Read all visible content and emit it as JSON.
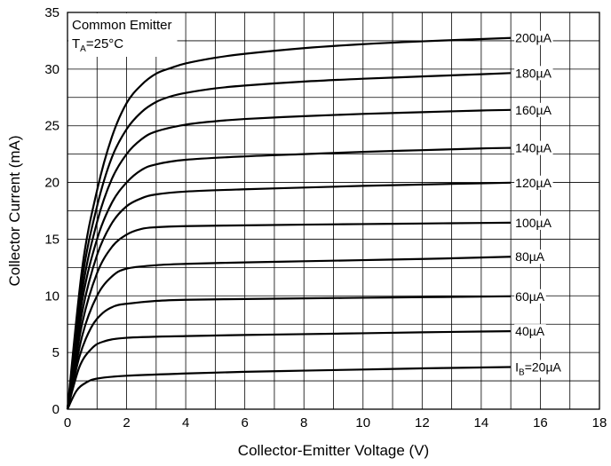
{
  "chart_data": {
    "type": "line",
    "xlabel": "Collector-Emitter Voltage (V)",
    "ylabel": "Collector Current (mA)",
    "xlim": [
      0,
      18
    ],
    "ylim": [
      0,
      35
    ],
    "xticks": [
      0,
      2,
      4,
      6,
      8,
      10,
      12,
      14,
      16,
      18
    ],
    "yticks": [
      0,
      5,
      10,
      15,
      20,
      25,
      30,
      35
    ],
    "x_minor_step": 1,
    "y_minor_step": 2.5,
    "grid": true,
    "annotation": {
      "line1": "Common Emitter",
      "temp_main": "T",
      "temp_sub": "A",
      "temp_value": "=25°C"
    },
    "series": [
      {
        "name": "IB=20µA",
        "label_main": "I",
        "label_sub": "B",
        "label_tail": "=20µA",
        "points": [
          [
            0,
            0
          ],
          [
            0.3,
            1.6
          ],
          [
            0.6,
            2.3
          ],
          [
            1,
            2.7
          ],
          [
            2,
            2.95
          ],
          [
            4,
            3.15
          ],
          [
            6,
            3.3
          ],
          [
            8,
            3.4
          ],
          [
            10,
            3.5
          ],
          [
            12,
            3.6
          ],
          [
            14,
            3.68
          ],
          [
            15,
            3.72
          ]
        ]
      },
      {
        "name": "40µA",
        "label_main": "40µA",
        "label_sub": "",
        "label_tail": "",
        "points": [
          [
            0,
            0
          ],
          [
            0.4,
            3.7
          ],
          [
            0.8,
            5.3
          ],
          [
            1.2,
            5.95
          ],
          [
            2,
            6.3
          ],
          [
            4,
            6.45
          ],
          [
            6,
            6.55
          ],
          [
            8,
            6.62
          ],
          [
            10,
            6.7
          ],
          [
            12,
            6.78
          ],
          [
            14,
            6.85
          ],
          [
            15,
            6.88
          ]
        ]
      },
      {
        "name": "60µA",
        "label_main": "60µA",
        "label_sub": "",
        "label_tail": "",
        "points": [
          [
            0,
            0
          ],
          [
            0.4,
            4.6
          ],
          [
            0.8,
            7.2
          ],
          [
            1.2,
            8.5
          ],
          [
            1.6,
            9.1
          ],
          [
            2,
            9.3
          ],
          [
            3,
            9.55
          ],
          [
            4,
            9.65
          ],
          [
            6,
            9.72
          ],
          [
            8,
            9.78
          ],
          [
            10,
            9.83
          ],
          [
            12,
            9.88
          ],
          [
            14,
            9.93
          ],
          [
            15,
            9.96
          ]
        ]
      },
      {
        "name": "80µA",
        "label_main": "80µA",
        "label_sub": "",
        "label_tail": "",
        "points": [
          [
            0,
            0
          ],
          [
            0.5,
            6.5
          ],
          [
            1,
            10.0
          ],
          [
            1.5,
            11.7
          ],
          [
            2,
            12.4
          ],
          [
            3,
            12.7
          ],
          [
            4,
            12.82
          ],
          [
            6,
            12.95
          ],
          [
            8,
            13.05
          ],
          [
            10,
            13.15
          ],
          [
            12,
            13.25
          ],
          [
            14,
            13.38
          ],
          [
            15,
            13.45
          ]
        ]
      },
      {
        "name": "100µA",
        "label_main": "100µA",
        "label_sub": "",
        "label_tail": "",
        "points": [
          [
            0,
            0
          ],
          [
            0.5,
            7.6
          ],
          [
            1,
            12.0
          ],
          [
            1.5,
            14.3
          ],
          [
            2,
            15.4
          ],
          [
            2.5,
            15.9
          ],
          [
            3,
            16.05
          ],
          [
            4,
            16.15
          ],
          [
            6,
            16.22
          ],
          [
            8,
            16.28
          ],
          [
            10,
            16.33
          ],
          [
            12,
            16.38
          ],
          [
            14,
            16.43
          ],
          [
            15,
            16.45
          ]
        ]
      },
      {
        "name": "120µA",
        "label_main": "120µA",
        "label_sub": "",
        "label_tail": "",
        "points": [
          [
            0,
            0
          ],
          [
            0.5,
            8.6
          ],
          [
            1,
            13.6
          ],
          [
            1.5,
            16.4
          ],
          [
            2,
            17.9
          ],
          [
            2.5,
            18.6
          ],
          [
            3,
            18.95
          ],
          [
            4,
            19.2
          ],
          [
            6,
            19.4
          ],
          [
            8,
            19.55
          ],
          [
            10,
            19.7
          ],
          [
            12,
            19.82
          ],
          [
            14,
            19.93
          ],
          [
            15,
            19.98
          ]
        ]
      },
      {
        "name": "140µA",
        "label_main": "140µA",
        "label_sub": "",
        "label_tail": "",
        "points": [
          [
            0,
            0
          ],
          [
            0.5,
            9.6
          ],
          [
            1,
            15.0
          ],
          [
            1.5,
            18.2
          ],
          [
            2,
            20.0
          ],
          [
            2.5,
            21.1
          ],
          [
            3,
            21.6
          ],
          [
            4,
            22.0
          ],
          [
            6,
            22.3
          ],
          [
            8,
            22.5
          ],
          [
            10,
            22.7
          ],
          [
            12,
            22.85
          ],
          [
            14,
            23.0
          ],
          [
            15,
            23.05
          ]
        ]
      },
      {
        "name": "160µA",
        "label_main": "160µA",
        "label_sub": "",
        "label_tail": "",
        "points": [
          [
            0,
            0
          ],
          [
            0.5,
            10.5
          ],
          [
            1,
            16.5
          ],
          [
            1.5,
            20.3
          ],
          [
            2,
            22.5
          ],
          [
            2.5,
            23.8
          ],
          [
            3,
            24.5
          ],
          [
            4,
            25.1
          ],
          [
            5,
            25.4
          ],
          [
            6,
            25.6
          ],
          [
            8,
            25.85
          ],
          [
            10,
            26.05
          ],
          [
            12,
            26.2
          ],
          [
            14,
            26.35
          ],
          [
            15,
            26.4
          ]
        ]
      },
      {
        "name": "180µA",
        "label_main": "180µA",
        "label_sub": "",
        "label_tail": "",
        "points": [
          [
            0,
            0
          ],
          [
            0.5,
            11.5
          ],
          [
            1,
            17.9
          ],
          [
            1.5,
            22.2
          ],
          [
            2,
            24.7
          ],
          [
            2.5,
            26.2
          ],
          [
            3,
            27.1
          ],
          [
            3.5,
            27.6
          ],
          [
            4,
            27.9
          ],
          [
            5,
            28.3
          ],
          [
            6,
            28.55
          ],
          [
            8,
            28.9
          ],
          [
            10,
            29.15
          ],
          [
            12,
            29.35
          ],
          [
            14,
            29.55
          ],
          [
            15,
            29.65
          ]
        ]
      },
      {
        "name": "200µA",
        "label_main": "200µA",
        "label_sub": "",
        "label_tail": "",
        "points": [
          [
            0,
            0
          ],
          [
            0.5,
            12.5
          ],
          [
            1,
            19.3
          ],
          [
            1.5,
            24.0
          ],
          [
            2,
            27.0
          ],
          [
            2.5,
            28.6
          ],
          [
            3,
            29.6
          ],
          [
            3.5,
            30.1
          ],
          [
            4,
            30.5
          ],
          [
            5,
            31.0
          ],
          [
            6,
            31.35
          ],
          [
            8,
            31.85
          ],
          [
            10,
            32.2
          ],
          [
            12,
            32.45
          ],
          [
            14,
            32.65
          ],
          [
            15,
            32.75
          ]
        ]
      }
    ]
  }
}
